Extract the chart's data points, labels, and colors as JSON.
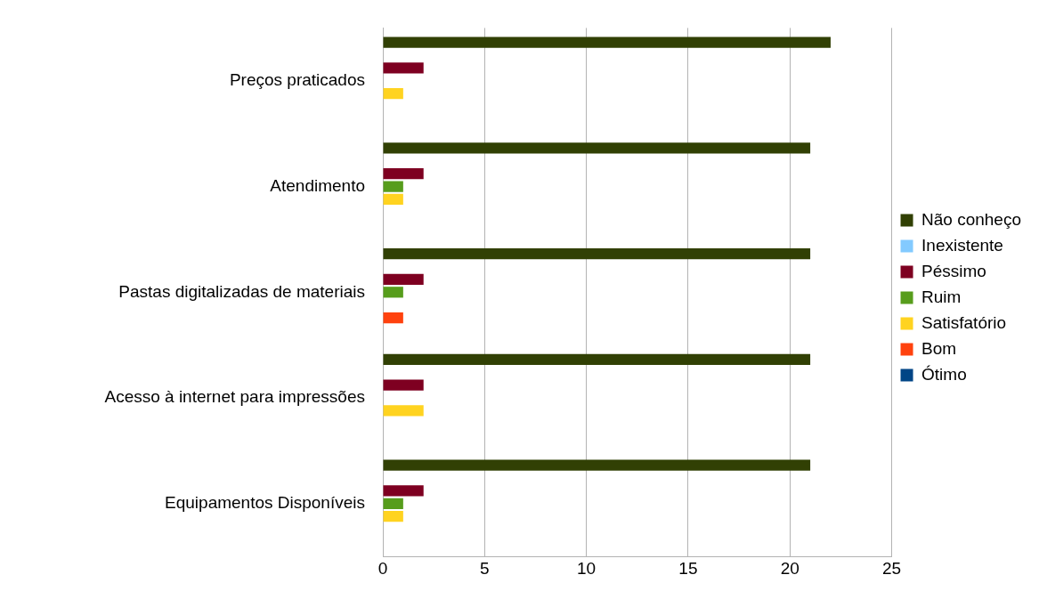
{
  "chart_data": {
    "type": "bar",
    "orientation": "horizontal",
    "categories": [
      "Preços praticados",
      "Atendimento",
      "Pastas digitalizadas de materiais",
      "Acesso à internet para impressões",
      "Equipamentos Disponíveis"
    ],
    "series": [
      {
        "name": "Não conheço",
        "color": "#314004",
        "values": [
          22,
          21,
          21,
          21,
          21
        ]
      },
      {
        "name": "Inexistente",
        "color": "#83caff",
        "values": [
          0,
          0,
          0,
          0,
          0
        ]
      },
      {
        "name": "Péssimo",
        "color": "#7e0021",
        "values": [
          2,
          2,
          2,
          2,
          2
        ]
      },
      {
        "name": "Ruim",
        "color": "#579d1c",
        "values": [
          0,
          1,
          1,
          0,
          1
        ]
      },
      {
        "name": "Satisfatório",
        "color": "#ffd320",
        "values": [
          1,
          1,
          0,
          2,
          1
        ]
      },
      {
        "name": "Bom",
        "color": "#ff420e",
        "values": [
          0,
          0,
          1,
          0,
          0
        ]
      },
      {
        "name": "Ótimo",
        "color": "#004586",
        "values": [
          0,
          0,
          0,
          0,
          0
        ]
      }
    ],
    "xlim": [
      0,
      25
    ],
    "xticks": [
      0,
      5,
      10,
      15,
      20,
      25
    ],
    "grid": "x",
    "legend": "right"
  }
}
